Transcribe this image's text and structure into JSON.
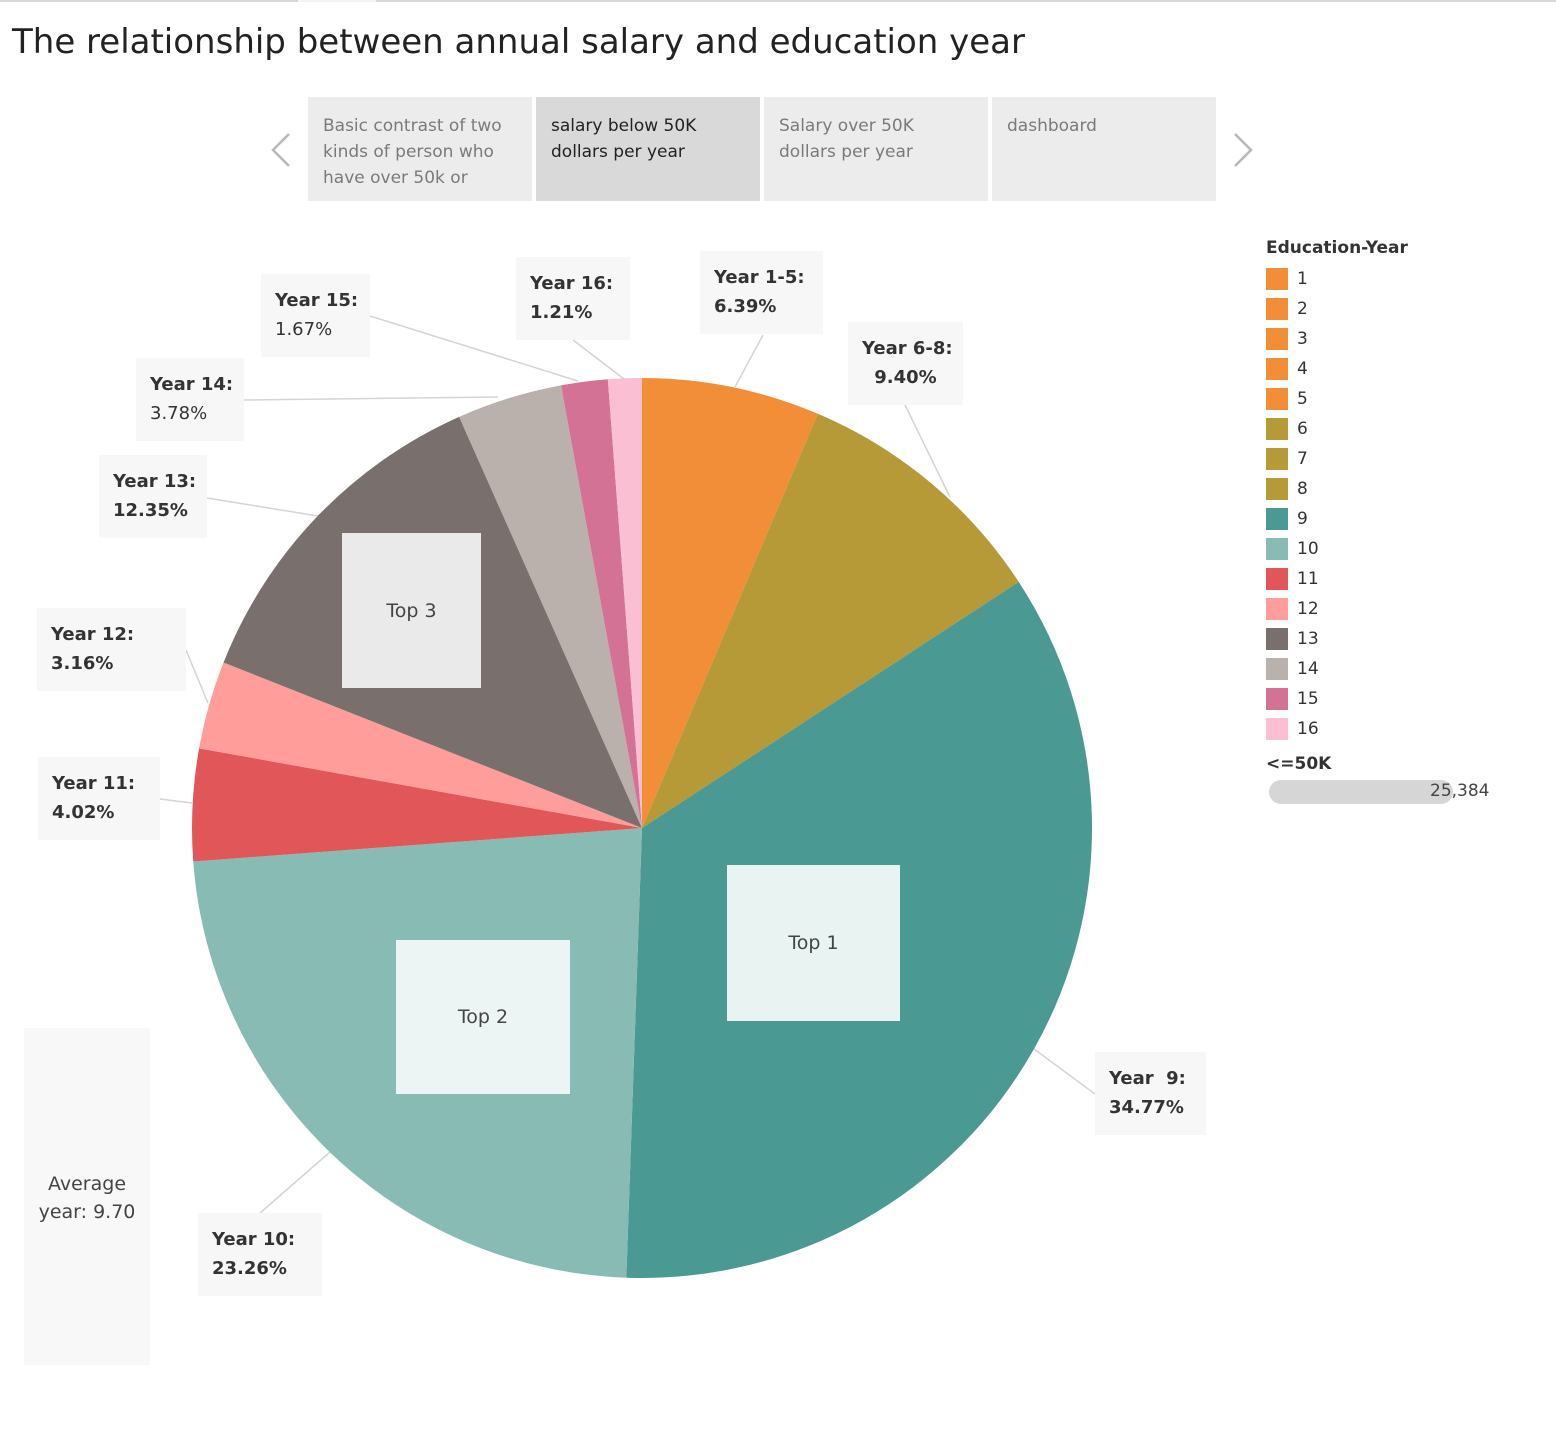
{
  "title": "The relationship between annual salary and education year",
  "nav": {
    "prev_icon": "chevron-left-icon",
    "next_icon": "chevron-right-icon",
    "tabs": [
      {
        "label": "Basic contrast of two kinds of person who have over 50k or",
        "active": false
      },
      {
        "label": "salary below 50K dollars per year",
        "active": true
      },
      {
        "label": "Salary over 50K dollars per year",
        "active": false
      },
      {
        "label": "dashboard",
        "active": false
      }
    ]
  },
  "chart_data": {
    "type": "pie",
    "slices": [
      {
        "label": "Year 1-5:",
        "value": 6.39,
        "pct_text": "6.39%",
        "color": "#f28e38"
      },
      {
        "label": "Year 6-8:",
        "value": 9.4,
        "pct_text": "9.40%",
        "color": "#b59a37"
      },
      {
        "label": "Year  9:",
        "value": 34.77,
        "pct_text": "34.77%",
        "color": "#4a9993"
      },
      {
        "label": "Year 10:",
        "value": 23.26,
        "pct_text": "23.26%",
        "color": "#87bbb4"
      },
      {
        "label": "Year 11:",
        "value": 4.02,
        "pct_text": "4.02%",
        "color": "#e15759"
      },
      {
        "label": "Year 12:",
        "value": 3.16,
        "pct_text": "3.16%",
        "color": "#ff9d9a"
      },
      {
        "label": "Year 13:",
        "value": 12.35,
        "pct_text": "12.35%",
        "color": "#79706e"
      },
      {
        "label": "Year 14:",
        "value": 3.78,
        "pct_text": "3.78%",
        "color": "#bab0ac"
      },
      {
        "label": "Year 15:",
        "value": 1.67,
        "pct_text": "1.67%",
        "color": "#d37295"
      },
      {
        "label": "Year 16:",
        "value": 1.21,
        "pct_text": "1.21%",
        "color": "#fabfd2"
      }
    ],
    "annotations": [
      "Top 1",
      "Top 2",
      "Top 3"
    ],
    "average_label": "Average year: 9.70"
  },
  "legend": {
    "title": "Education-Year",
    "items": [
      {
        "label": "1",
        "color": "#f28e38"
      },
      {
        "label": "2",
        "color": "#f28e38"
      },
      {
        "label": "3",
        "color": "#f28e38"
      },
      {
        "label": "4",
        "color": "#f28e38"
      },
      {
        "label": "5",
        "color": "#f28e38"
      },
      {
        "label": "6",
        "color": "#b59a37"
      },
      {
        "label": "7",
        "color": "#b59a37"
      },
      {
        "label": "8",
        "color": "#b59a37"
      },
      {
        "label": "9",
        "color": "#4a9993"
      },
      {
        "label": "10",
        "color": "#87bbb4"
      },
      {
        "label": "11",
        "color": "#e15759"
      },
      {
        "label": "12",
        "color": "#ff9d9a"
      },
      {
        "label": "13",
        "color": "#79706e"
      },
      {
        "label": "14",
        "color": "#bab0ac"
      },
      {
        "label": "15",
        "color": "#d37295"
      },
      {
        "label": "16",
        "color": "#fabfd2"
      }
    ],
    "size_title": "<=50K",
    "size_value": "25,384"
  }
}
